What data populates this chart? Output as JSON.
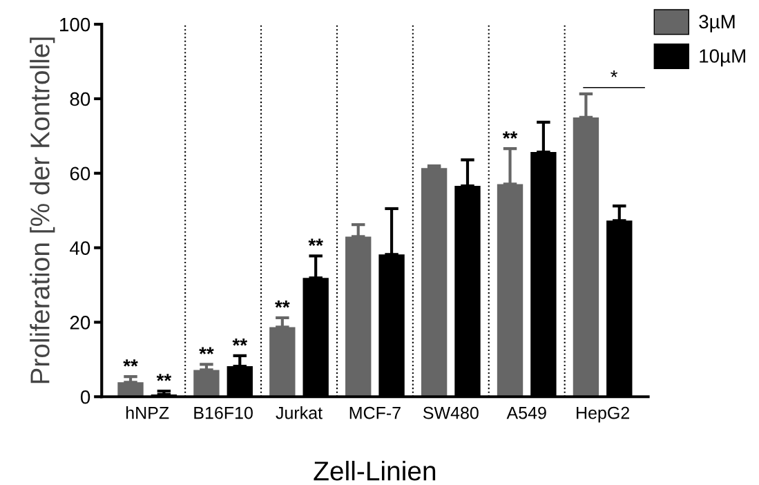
{
  "chart_data": {
    "type": "bar",
    "xlabel": "Zell-Linien",
    "ylabel": "Proliferation [% der Kontrolle]",
    "categories": [
      "hNPZ",
      "B16F10",
      "Jurkat",
      "MCF-7",
      "SW480",
      "A549",
      "HepG2"
    ],
    "series": [
      {
        "name": "3µM",
        "color": "#666666",
        "values": [
          3.9,
          7.2,
          18.7,
          43,
          61.4,
          57.1,
          75
        ],
        "errors": [
          [
            3.9,
            5.4
          ],
          [
            7.2,
            8.7
          ],
          [
            18.7,
            21.2
          ],
          [
            43,
            46.2
          ],
          [
            61.4,
            62
          ],
          [
            57.1,
            66.6
          ],
          [
            75,
            81.3
          ]
        ],
        "value_labels": [
          "**",
          "**",
          "**",
          null,
          null,
          "**",
          null
        ]
      },
      {
        "name": "10µM",
        "color": "#000000",
        "values": [
          0.6,
          8.2,
          31.9,
          38.2,
          56.6,
          65.7,
          47.3
        ],
        "errors": [
          [
            0.6,
            1.5
          ],
          [
            8.2,
            11
          ],
          [
            31.9,
            37.8
          ],
          [
            38.2,
            50.5
          ],
          [
            56.6,
            63.6
          ],
          [
            65.7,
            73.7
          ],
          [
            47.3,
            51.2
          ]
        ],
        "value_labels": [
          "**",
          "**",
          "**",
          null,
          null,
          null,
          null
        ]
      }
    ],
    "ylim": [
      0,
      100
    ],
    "yticks": [
      0,
      20,
      40,
      60,
      80,
      100
    ],
    "grid": false,
    "legend": "top right",
    "annotations": [
      "*"
    ]
  }
}
